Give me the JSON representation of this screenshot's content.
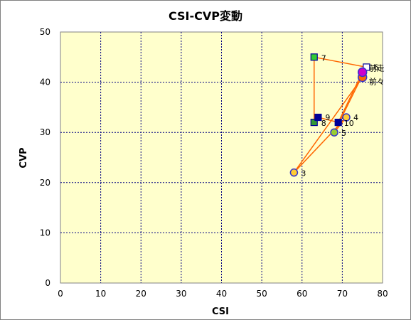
{
  "chart_data": {
    "type": "scatter",
    "title": "CSI-CVP変動",
    "xlabel": "CSI",
    "ylabel": "CVP",
    "xlim": [
      0,
      80
    ],
    "ylim": [
      0,
      50
    ],
    "x_ticks": [
      0,
      10,
      20,
      30,
      40,
      50,
      60,
      70,
      80
    ],
    "y_ticks": [
      0,
      10,
      20,
      30,
      40,
      50
    ],
    "grid": "dashed",
    "plot_background": "#ffffcc",
    "line_color": "#ff6600",
    "path_order": [
      "3",
      "4",
      "5",
      "6",
      "7",
      "8",
      "9",
      "10"
    ],
    "points": [
      {
        "label": "前走",
        "x": 75,
        "y": 42,
        "marker": "circle",
        "fill": "#cc00cc",
        "stroke": "#3333cc"
      },
      {
        "label": "前々",
        "x": 75,
        "y": 41,
        "marker": "circle",
        "fill": "#ff6600",
        "stroke": "#3333cc"
      },
      {
        "label": "3",
        "x": 58,
        "y": 22,
        "marker": "circle",
        "fill": "#ffcc33",
        "stroke": "#3333cc"
      },
      {
        "label": "4",
        "x": 71,
        "y": 33,
        "marker": "circle",
        "fill": "#ffcc33",
        "stroke": "#3333cc"
      },
      {
        "label": "5",
        "x": 68,
        "y": 30,
        "marker": "circle",
        "fill": "#99cc33",
        "stroke": "#3333cc"
      },
      {
        "label": "6",
        "x": 76,
        "y": 43,
        "marker": "square",
        "fill": "#ffffff",
        "stroke": "#000099"
      },
      {
        "label": "7",
        "x": 63,
        "y": 45,
        "marker": "square",
        "fill": "#33cc33",
        "stroke": "#000099"
      },
      {
        "label": "8",
        "x": 63,
        "y": 32,
        "marker": "square",
        "fill": "#339933",
        "stroke": "#000099"
      },
      {
        "label": "9",
        "x": 64,
        "y": 33,
        "marker": "square",
        "fill": "#000099",
        "stroke": "#000099"
      },
      {
        "label": "10",
        "x": 69,
        "y": 32,
        "marker": "square",
        "fill": "#000099",
        "stroke": "#000099"
      }
    ]
  }
}
